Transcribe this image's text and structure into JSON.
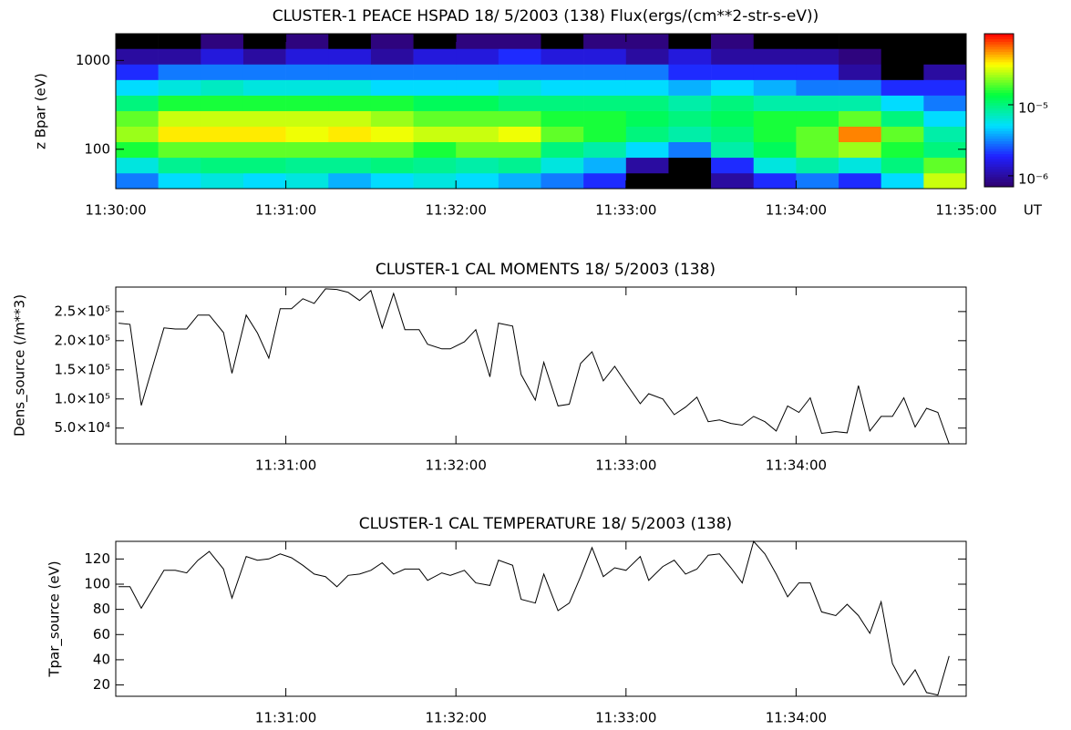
{
  "chart_data": [
    {
      "type": "heatmap",
      "title": "CLUSTER-1  PEACE HSPAD 18/ 5/2003 (138) Flux(ergs/(cm**2-str-s-eV))",
      "ylabel": "z Bpar (eV)",
      "xlabel": "UT",
      "x": [
        7.5,
        22.5,
        37.5,
        52.5,
        67.5,
        82.5,
        97.5,
        112.5,
        127.5,
        142.5,
        157.5,
        172.5,
        187.5,
        202.5,
        217.5,
        232.5,
        247.5,
        262.5,
        277.5,
        292.5
      ],
      "y": [
        44,
        66,
        99,
        148,
        221,
        331,
        495,
        741,
        1110,
        1660
      ],
      "z": [
        [
          3e-06,
          5e-06,
          6e-06,
          5e-06,
          6e-06,
          4e-06,
          5e-06,
          6e-06,
          5e-06,
          4e-06,
          3e-06,
          2e-06,
          5e-07,
          5e-07,
          1e-06,
          2e-06,
          3e-06,
          2e-06,
          5e-06,
          3e-05
        ],
        [
          6e-06,
          9e-06,
          1e-05,
          1e-05,
          9e-06,
          9e-06,
          1e-05,
          9e-06,
          8e-06,
          9e-06,
          6e-06,
          4e-06,
          1e-06,
          5e-07,
          2e-06,
          6e-06,
          8e-06,
          6e-06,
          1e-05,
          2e-05
        ],
        [
          1.5e-05,
          2e-05,
          2e-05,
          2e-05,
          2e-05,
          2e-05,
          2e-05,
          1.5e-05,
          2e-05,
          2e-05,
          1e-05,
          8e-06,
          5e-06,
          3e-06,
          8e-06,
          1.2e-05,
          2e-05,
          2.5e-05,
          1.5e-05,
          1e-05
        ],
        [
          2.5e-05,
          4e-05,
          4e-05,
          4e-05,
          3.5e-05,
          4e-05,
          3.5e-05,
          3e-05,
          3e-05,
          3.5e-05,
          2e-05,
          1.5e-05,
          1e-05,
          8e-06,
          1e-05,
          1.5e-05,
          2e-05,
          6e-05,
          2e-05,
          8e-06
        ],
        [
          2e-05,
          3e-05,
          3e-05,
          3e-05,
          3e-05,
          3e-05,
          2.5e-05,
          2e-05,
          2e-05,
          2e-05,
          1.5e-05,
          1.5e-05,
          1.2e-05,
          1e-05,
          1.2e-05,
          1.5e-05,
          1.5e-05,
          2e-05,
          1e-05,
          5e-06
        ],
        [
          1e-05,
          1.5e-05,
          1.5e-05,
          1.5e-05,
          1.5e-05,
          1.5e-05,
          1.5e-05,
          1.2e-05,
          1.2e-05,
          1e-05,
          1e-05,
          1e-05,
          1e-05,
          8e-06,
          1e-05,
          8e-06,
          8e-06,
          8e-06,
          5e-06,
          3e-06
        ],
        [
          5e-06,
          6e-06,
          7e-06,
          6e-06,
          6e-06,
          6e-06,
          5e-06,
          5e-06,
          5e-06,
          6e-06,
          5e-06,
          5e-06,
          5e-06,
          4e-06,
          5e-06,
          4e-06,
          3e-06,
          3e-06,
          2e-06,
          2e-06
        ],
        [
          2e-06,
          3e-06,
          3e-06,
          3e-06,
          3e-06,
          3e-06,
          3e-06,
          3e-06,
          3e-06,
          3e-06,
          3e-06,
          3e-06,
          3e-06,
          2e-06,
          2e-06,
          2e-06,
          2e-06,
          1e-06,
          5e-07,
          1e-06
        ],
        [
          1e-06,
          1e-06,
          1.5e-06,
          1e-06,
          1.5e-06,
          1.5e-06,
          1e-06,
          1.5e-06,
          1.5e-06,
          2e-06,
          1.5e-06,
          1.5e-06,
          1e-06,
          1.5e-06,
          1e-06,
          1e-06,
          1e-06,
          8e-07,
          5e-07,
          5e-07
        ],
        [
          5e-07,
          5e-07,
          8e-07,
          5e-07,
          8e-07,
          5e-07,
          8e-07,
          5e-07,
          8e-07,
          8e-07,
          5e-07,
          8e-07,
          8e-07,
          5e-07,
          8e-07,
          5e-07,
          5e-07,
          5e-07,
          5e-07,
          5e-07
        ]
      ],
      "xlim": [
        0,
        300
      ],
      "xticks": [
        {
          "value": 0,
          "label": "11:30:00"
        },
        {
          "value": 60,
          "label": "11:31:00"
        },
        {
          "value": 120,
          "label": "11:32:00"
        },
        {
          "value": 180,
          "label": "11:33:00"
        },
        {
          "value": 240,
          "label": "11:34:00"
        },
        {
          "value": 300,
          "label": "11:35:00"
        }
      ],
      "ylim": [
        36,
        2000
      ],
      "ylog": true,
      "yticks": [
        100,
        1000
      ],
      "zlim": [
        7e-07,
        0.0001
      ],
      "zlog": true,
      "zticks": [
        {
          "value": 1e-06,
          "label": "10⁻⁶"
        },
        {
          "value": 1e-05,
          "label": "10⁻⁵"
        }
      ],
      "colormap": [
        "#30006a",
        "#2020ff",
        "#00e0ff",
        "#00ff40",
        "#ffff00",
        "#ff0000"
      ],
      "under_color": "#000000"
    },
    {
      "type": "line",
      "title": "CLUSTER-1 CAL MOMENTS 18/ 5/2003 (138)",
      "ylabel": "Dens_source (/m**3)",
      "color": "#000000",
      "x": [
        1,
        5,
        9,
        17,
        21,
        25,
        29,
        33,
        38,
        41,
        46,
        50,
        54,
        58,
        62,
        66,
        70,
        74,
        78,
        82,
        86,
        90,
        94,
        98,
        102,
        107,
        110,
        115,
        118,
        123,
        127,
        132,
        135,
        140,
        143,
        148,
        151,
        156,
        160,
        164,
        168,
        172,
        176,
        180,
        185,
        188,
        193,
        197,
        201,
        205,
        209,
        213,
        217,
        221,
        225,
        229,
        233,
        237,
        241,
        245,
        249,
        254,
        258,
        262,
        266,
        270,
        274,
        278,
        282,
        286,
        290,
        294
      ],
      "values": [
        230000,
        228000,
        89000,
        222000,
        220000,
        220000,
        244000,
        244000,
        214000,
        144000,
        244000,
        213000,
        170000,
        255000,
        255000,
        272000,
        264000,
        289000,
        288000,
        283000,
        269000,
        286000,
        222000,
        281000,
        219000,
        219000,
        194000,
        186000,
        186000,
        198000,
        219000,
        138000,
        230000,
        225000,
        142000,
        98000,
        163000,
        88000,
        91000,
        161000,
        181000,
        131000,
        156000,
        127000,
        92000,
        109000,
        100000,
        73000,
        86000,
        103000,
        61000,
        64000,
        58000,
        55000,
        70000,
        61000,
        45000,
        88000,
        77000,
        102000,
        41000,
        44000,
        42000,
        123000,
        45000,
        70000,
        70000,
        102000,
        52000,
        84000,
        77000,
        23000
      ],
      "xlim": [
        0,
        300
      ],
      "xticks": [
        {
          "value": 60,
          "label": "11:31:00"
        },
        {
          "value": 120,
          "label": "11:32:00"
        },
        {
          "value": 180,
          "label": "11:33:00"
        },
        {
          "value": 240,
          "label": "11:34:00"
        }
      ],
      "ylim": [
        23000,
        292000
      ],
      "yticks": [
        {
          "value": 50000,
          "label": "5.0×10⁴"
        },
        {
          "value": 100000,
          "label": "1.0×10⁵"
        },
        {
          "value": 150000,
          "label": "1.5×10⁵"
        },
        {
          "value": 200000,
          "label": "2.0×10⁵"
        },
        {
          "value": 250000,
          "label": "2.5×10⁵"
        }
      ]
    },
    {
      "type": "line",
      "title": "CLUSTER-1 CAL TEMPERATURE 18/ 5/2003 (138)",
      "ylabel": "Tpar_source (eV)",
      "color": "#000000",
      "x": [
        1,
        5,
        9,
        17,
        21,
        25,
        29,
        33,
        38,
        41,
        46,
        50,
        54,
        58,
        62,
        66,
        70,
        74,
        78,
        82,
        86,
        90,
        94,
        98,
        102,
        107,
        110,
        115,
        118,
        123,
        127,
        132,
        135,
        140,
        143,
        148,
        151,
        156,
        160,
        164,
        168,
        172,
        176,
        180,
        185,
        188,
        193,
        197,
        201,
        205,
        209,
        213,
        217,
        221,
        225,
        229,
        233,
        237,
        241,
        245,
        249,
        254,
        258,
        262,
        266,
        270,
        274,
        278,
        282,
        286,
        290,
        294
      ],
      "values": [
        98,
        98,
        81,
        111,
        111,
        109,
        119,
        126,
        112,
        89,
        122,
        119,
        120,
        124,
        121,
        115,
        108,
        106,
        98,
        107,
        108,
        111,
        117,
        108,
        112,
        112,
        103,
        109,
        107,
        111,
        101,
        99,
        119,
        115,
        88,
        85,
        108,
        79,
        85,
        106,
        129,
        106,
        113,
        111,
        122,
        103,
        114,
        119,
        108,
        112,
        123,
        124,
        113,
        101,
        134,
        124,
        108,
        90,
        101,
        101,
        78,
        75,
        84,
        75,
        61,
        86,
        37,
        20,
        32,
        14,
        12,
        43
      ],
      "xlim": [
        0,
        300
      ],
      "xticks": [
        {
          "value": 60,
          "label": "11:31:00"
        },
        {
          "value": 120,
          "label": "11:32:00"
        },
        {
          "value": 180,
          "label": "11:33:00"
        },
        {
          "value": 240,
          "label": "11:34:00"
        }
      ],
      "ylim": [
        11,
        134
      ],
      "yticks": [
        20,
        40,
        60,
        80,
        100,
        120
      ]
    }
  ]
}
